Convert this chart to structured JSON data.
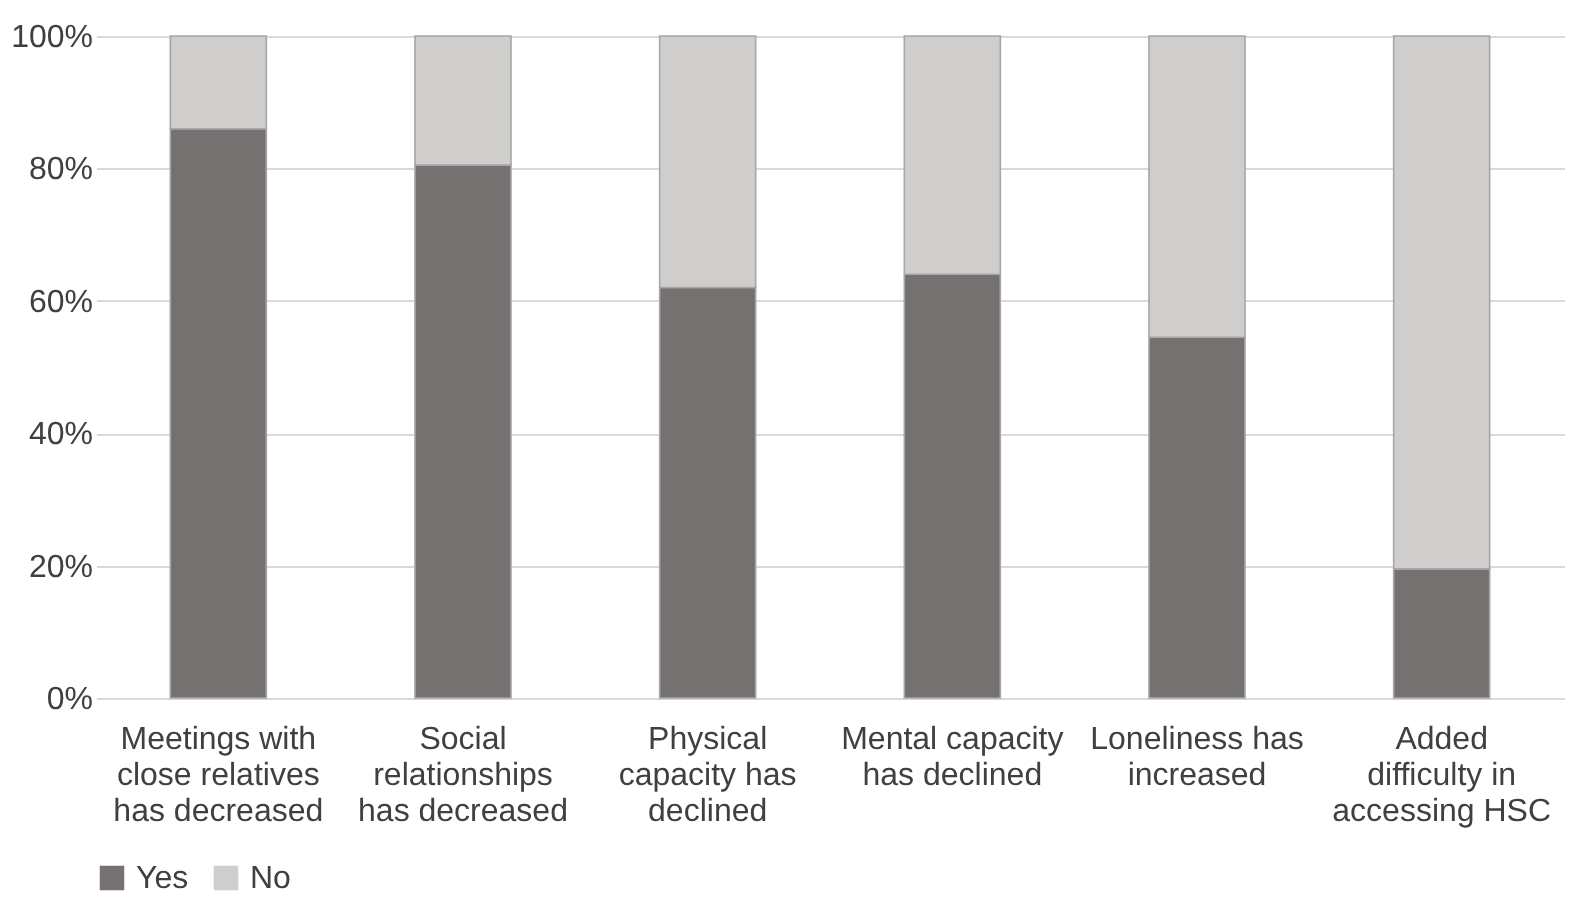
{
  "chart_data": {
    "type": "bar",
    "stacked": true,
    "categories": [
      "Meetings with close relatives has decreased",
      "Social relationships has decreased",
      "Physical capacity has declined",
      "Mental capacity has declined",
      "Loneliness has increased",
      "Added difficulty in accessing HSC"
    ],
    "series": [
      {
        "name": "Yes",
        "color": "#767171",
        "values": [
          86,
          80.5,
          62,
          64,
          54.5,
          19.5
        ]
      },
      {
        "name": "No",
        "color": "#d0cecd",
        "values": [
          14,
          19.5,
          38,
          36,
          45.5,
          80.5
        ]
      }
    ],
    "ylim": [
      0,
      100
    ],
    "yticks": [
      {
        "value": 0,
        "label": "0%"
      },
      {
        "value": 20,
        "label": "20%"
      },
      {
        "value": 40,
        "label": "40%"
      },
      {
        "value": 60,
        "label": "60%"
      },
      {
        "value": 80,
        "label": "80%"
      },
      {
        "value": 100,
        "label": "100%"
      }
    ],
    "grid": "y",
    "legend": "bottom"
  }
}
